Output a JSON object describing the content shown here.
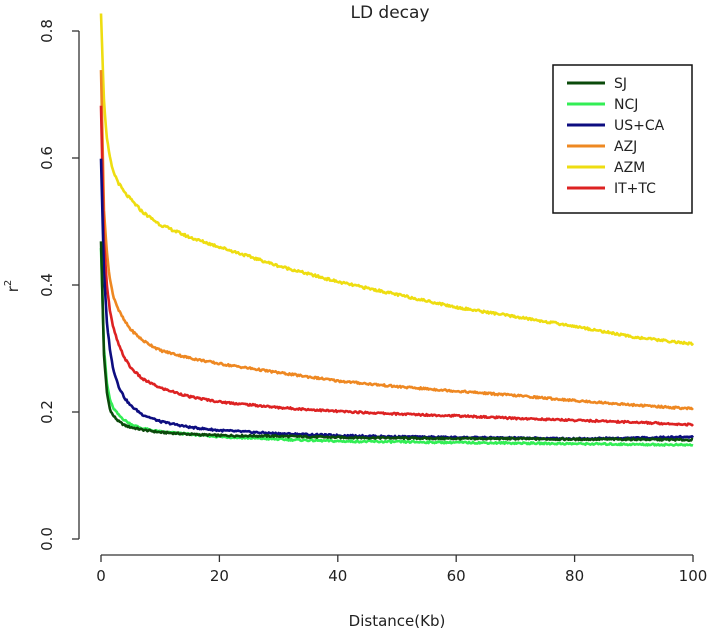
{
  "chart_data": {
    "type": "line",
    "title": "LD decay",
    "xlabel": "Distance(Kb)",
    "ylabel": "r",
    "ylabel_superscript": "2",
    "xlim": [
      0,
      100
    ],
    "ylim": [
      0.0,
      0.8
    ],
    "x_ticks": [
      "0",
      "20",
      "40",
      "60",
      "80",
      "100"
    ],
    "y_ticks": [
      "0.0",
      "0.2",
      "0.4",
      "0.6",
      "0.8"
    ],
    "legend_position": "top-right",
    "series": [
      {
        "name": "SJ",
        "color": "#0b4a0b",
        "x": [
          0,
          0.5,
          1,
          1.5,
          2,
          3,
          4,
          5,
          7,
          10,
          15,
          20,
          30,
          40,
          50,
          60,
          70,
          80,
          90,
          100
        ],
        "y": [
          0.47,
          0.29,
          0.23,
          0.205,
          0.195,
          0.185,
          0.179,
          0.176,
          0.172,
          0.168,
          0.165,
          0.163,
          0.162,
          0.16,
          0.159,
          0.158,
          0.158,
          0.157,
          0.157,
          0.156
        ]
      },
      {
        "name": "NCJ",
        "color": "#33ee55",
        "x": [
          0,
          0.5,
          1,
          1.5,
          2,
          3,
          4,
          5,
          7,
          10,
          15,
          20,
          30,
          40,
          50,
          60,
          70,
          80,
          90,
          100
        ],
        "y": [
          0.46,
          0.3,
          0.245,
          0.22,
          0.207,
          0.195,
          0.187,
          0.181,
          0.174,
          0.169,
          0.165,
          0.161,
          0.157,
          0.154,
          0.153,
          0.152,
          0.151,
          0.15,
          0.149,
          0.148
        ]
      },
      {
        "name": "US+CA",
        "color": "#0d0d80",
        "x": [
          0,
          0.5,
          1,
          1.5,
          2,
          3,
          4,
          5,
          7,
          10,
          15,
          20,
          30,
          40,
          50,
          60,
          70,
          80,
          90,
          100
        ],
        "y": [
          0.6,
          0.42,
          0.34,
          0.3,
          0.27,
          0.24,
          0.222,
          0.21,
          0.196,
          0.185,
          0.176,
          0.171,
          0.166,
          0.163,
          0.161,
          0.16,
          0.159,
          0.158,
          0.159,
          0.161
        ]
      },
      {
        "name": "AZJ",
        "color": "#ee8822",
        "x": [
          0,
          0.5,
          1,
          1.5,
          2,
          3,
          4,
          5,
          7,
          10,
          15,
          20,
          30,
          40,
          50,
          60,
          70,
          80,
          90,
          100
        ],
        "y": [
          0.74,
          0.52,
          0.45,
          0.41,
          0.385,
          0.36,
          0.343,
          0.33,
          0.313,
          0.297,
          0.285,
          0.276,
          0.262,
          0.249,
          0.24,
          0.233,
          0.226,
          0.218,
          0.211,
          0.205
        ]
      },
      {
        "name": "AZM",
        "color": "#eedd11",
        "x": [
          0,
          0.5,
          1,
          1.5,
          2,
          3,
          4,
          5,
          7,
          10,
          15,
          20,
          30,
          40,
          50,
          60,
          70,
          80,
          90,
          100
        ],
        "y": [
          0.83,
          0.69,
          0.63,
          0.6,
          0.58,
          0.56,
          0.545,
          0.535,
          0.515,
          0.495,
          0.475,
          0.46,
          0.43,
          0.405,
          0.385,
          0.365,
          0.35,
          0.335,
          0.318,
          0.307
        ]
      },
      {
        "name": "IT+TC",
        "color": "#dd2222",
        "x": [
          0,
          0.5,
          1,
          1.5,
          2,
          3,
          4,
          5,
          7,
          10,
          15,
          20,
          30,
          40,
          50,
          60,
          70,
          80,
          90,
          100
        ],
        "y": [
          0.68,
          0.47,
          0.4,
          0.36,
          0.335,
          0.305,
          0.285,
          0.27,
          0.252,
          0.238,
          0.224,
          0.216,
          0.207,
          0.201,
          0.197,
          0.194,
          0.19,
          0.187,
          0.184,
          0.18
        ]
      }
    ]
  }
}
